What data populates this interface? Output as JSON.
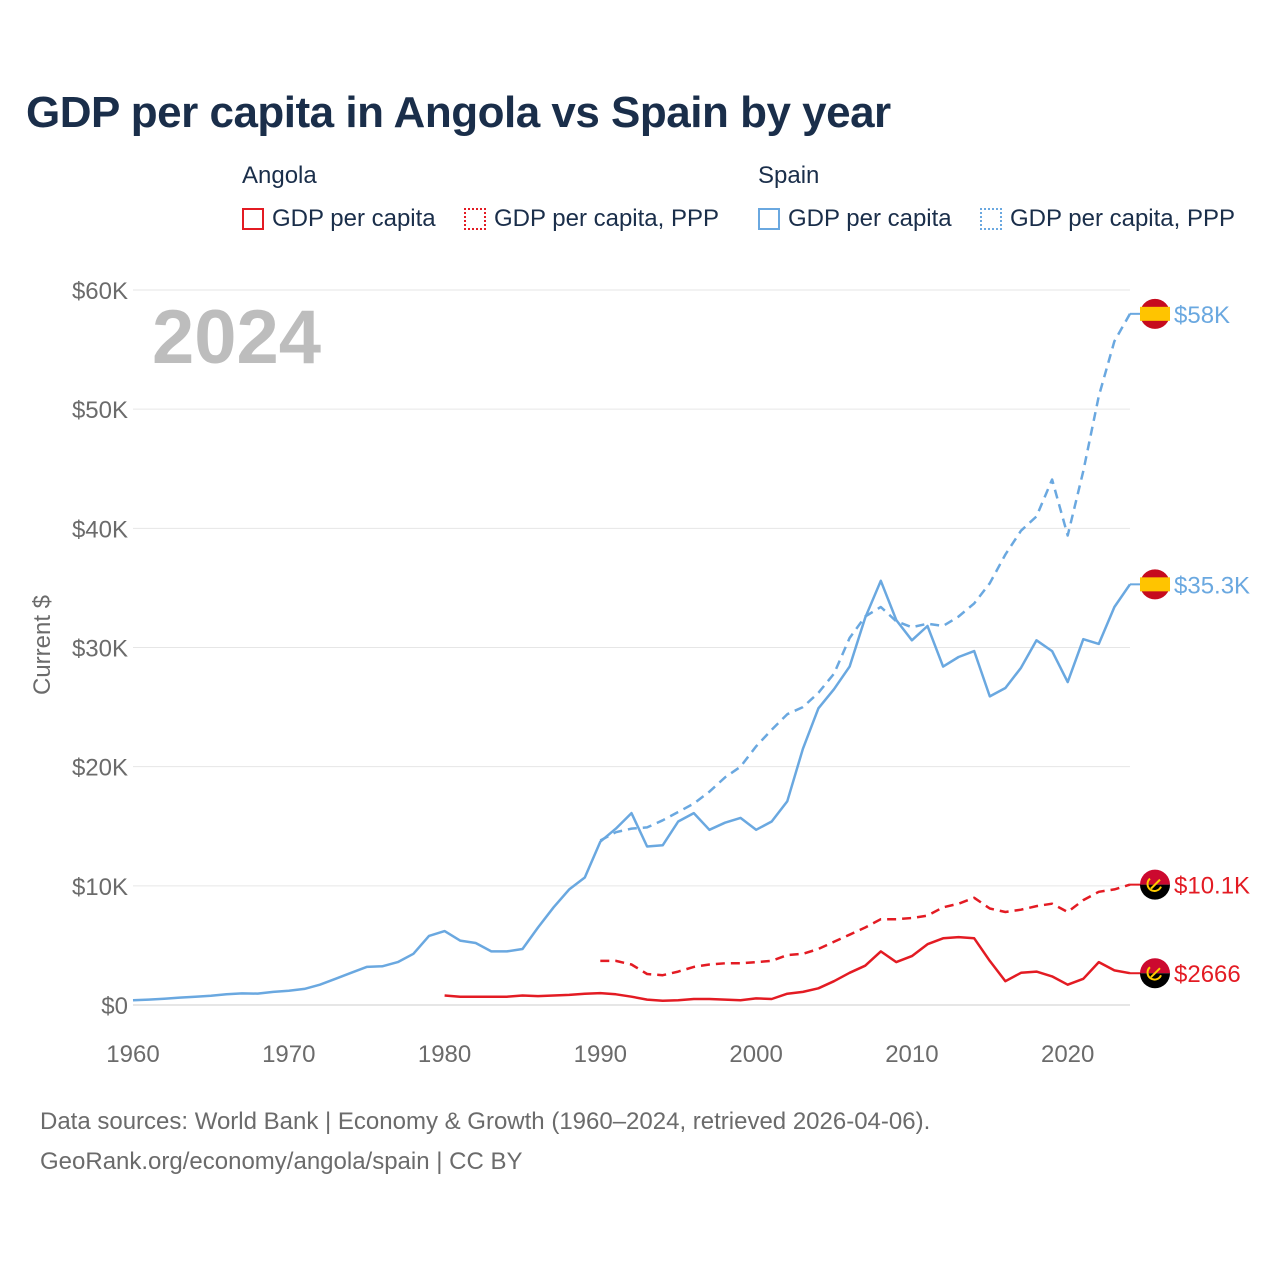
{
  "title": "GDP per capita in Angola vs Spain by year",
  "legend": {
    "angola_title": "Angola",
    "spain_title": "Spain",
    "angola_gdp": "GDP per capita",
    "angola_ppp": "GDP per capita, PPP",
    "spain_gdp": "GDP per capita",
    "spain_ppp": "GDP per capita, PPP"
  },
  "footer": {
    "sources": "Data sources: World Bank | Economy & Growth (1960–2024, retrieved 2026-04-06).",
    "credit": "GeoRank.org/economy/angola/spain | CC BY"
  },
  "colors": {
    "angola": "#e31b23",
    "spain": "#6aa8e0",
    "year_watermark": "#bdbdbd",
    "grid": "#e6e6e6",
    "axis_text": "#6b6b6b"
  },
  "chart_data": {
    "type": "line",
    "year_label": "2024",
    "ylabel": "Current $",
    "xlim": [
      1960,
      2024
    ],
    "ylim": [
      0,
      60000
    ],
    "x_ticks": [
      1960,
      1970,
      1980,
      1990,
      2000,
      2010,
      2020
    ],
    "y_ticks": [
      0,
      10000,
      20000,
      30000,
      40000,
      50000,
      60000
    ],
    "y_tick_labels": [
      "$0",
      "$10K",
      "$20K",
      "$30K",
      "$40K",
      "$50K",
      "$60K"
    ],
    "series": [
      {
        "name": "Spain GDP per capita",
        "country": "Spain",
        "style": "solid",
        "end_label": "$35.3K",
        "start_year": 1960,
        "values": [
          400,
          450,
          530,
          620,
          700,
          780,
          900,
          970,
          960,
          1100,
          1200,
          1350,
          1700,
          2200,
          2700,
          3200,
          3250,
          3600,
          4300,
          5800,
          6200,
          5400,
          5200,
          4500,
          4500,
          4700,
          6500,
          8200,
          9700,
          10700,
          13700,
          14800,
          16100,
          13300,
          13400,
          15400,
          16100,
          14700,
          15300,
          15700,
          14700,
          15400,
          17100,
          21500,
          24900,
          26500,
          28400,
          32500,
          35600,
          32300,
          30600,
          31800,
          28400,
          29200,
          29700,
          25900,
          26600,
          28300,
          30600,
          29700,
          27100,
          30700,
          30300,
          33400,
          35300
        ]
      },
      {
        "name": "Spain GDP per capita, PPP",
        "country": "Spain",
        "style": "dashed",
        "end_label": "$58K",
        "start_year": 1990,
        "values": [
          13800,
          14500,
          14800,
          14900,
          15500,
          16200,
          16900,
          17900,
          19100,
          20000,
          21700,
          23100,
          24400,
          25000,
          26200,
          27800,
          30800,
          32600,
          33400,
          32200,
          31700,
          32000,
          31800,
          32600,
          33700,
          35400,
          37800,
          39800,
          41000,
          44100,
          39400,
          44800,
          51100,
          55700,
          58000
        ]
      },
      {
        "name": "Angola GDP per capita",
        "country": "Angola",
        "style": "solid",
        "end_label": "$2666",
        "start_year": 1980,
        "values": [
          800,
          700,
          700,
          700,
          700,
          800,
          750,
          800,
          850,
          950,
          1000,
          900,
          700,
          450,
          350,
          400,
          500,
          500,
          450,
          400,
          550,
          500,
          950,
          1100,
          1400,
          2000,
          2700,
          3300,
          4500,
          3600,
          4100,
          5100,
          5600,
          5700,
          5600,
          3700,
          2000,
          2700,
          2800,
          2400,
          1700,
          2200,
          3600,
          2900,
          2666
        ]
      },
      {
        "name": "Angola GDP per capita, PPP",
        "country": "Angola",
        "style": "dashed",
        "end_label": "$10.1K",
        "start_year": 1990,
        "values": [
          3700,
          3700,
          3400,
          2600,
          2500,
          2800,
          3200,
          3400,
          3500,
          3500,
          3600,
          3700,
          4200,
          4300,
          4700,
          5300,
          5900,
          6500,
          7200,
          7200,
          7300,
          7500,
          8200,
          8500,
          9000,
          8100,
          7800,
          8000,
          8300,
          8500,
          7800,
          8800,
          9500,
          9700,
          10100
        ]
      }
    ]
  }
}
